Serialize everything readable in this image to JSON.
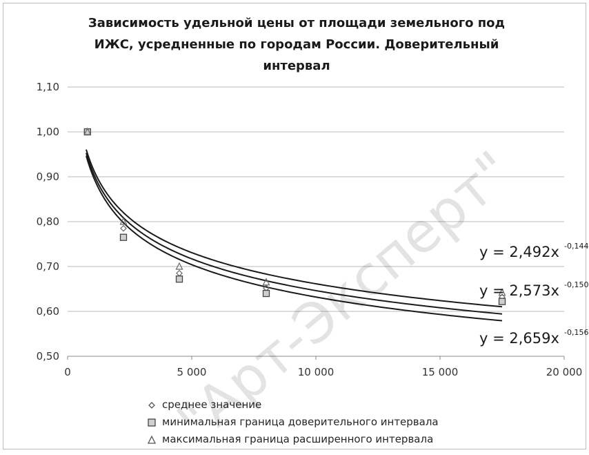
{
  "chart_data": {
    "type": "scatter",
    "title_lines": [
      "Зависимость удельной цены от площади земельного под",
      "ИЖС, усредненные по городам России. Доверительный",
      "интервал"
    ],
    "xlabel": "",
    "ylabel": "",
    "xlim": [
      0,
      20000
    ],
    "ylim": [
      0.5,
      1.1
    ],
    "x_ticks": [
      0,
      5000,
      10000,
      15000,
      20000
    ],
    "x_tick_labels": [
      "0",
      "5 000",
      "10 000",
      "15 000",
      "20 000"
    ],
    "y_ticks": [
      0.5,
      0.6,
      0.7,
      0.8,
      0.9,
      1.0,
      1.1
    ],
    "y_tick_labels": [
      "0,50",
      "0,60",
      "0,70",
      "0,80",
      "0,90",
      "1,00",
      "1,10"
    ],
    "grid": "horizontal",
    "legend_position": "bottom",
    "series": [
      {
        "name": "среднее значение",
        "marker": "diamond",
        "x": [
          800,
          2250,
          4500,
          8000,
          17500
        ],
        "y": [
          1.0,
          0.785,
          0.685,
          0.652,
          0.632
        ]
      },
      {
        "name": "минимальная граница доверительного интервала",
        "marker": "square",
        "x": [
          800,
          2250,
          4500,
          8000,
          17500
        ],
        "y": [
          1.0,
          0.765,
          0.672,
          0.64,
          0.622
        ]
      },
      {
        "name": "максимальная граница расширенного интервала",
        "marker": "triangle",
        "x": [
          800,
          2250,
          4500,
          8000,
          17500
        ],
        "y": [
          1.0,
          0.8,
          0.7,
          0.665,
          0.642
        ]
      }
    ],
    "trendlines": [
      {
        "label": "y = 2,492x",
        "exp_label": "-0,144",
        "a": 2.492,
        "b": -0.144
      },
      {
        "label": "y = 2,573x",
        "exp_label": "-0,150",
        "a": 2.573,
        "b": -0.15
      },
      {
        "label": "y = 2,659x",
        "exp_label": "-0,156",
        "a": 2.659,
        "b": -0.156
      }
    ],
    "trendline_x_range": [
      750,
      17500
    ],
    "colors": {
      "line": "#1a1a1a",
      "grid": "#b8b8b8",
      "marker": "#666666"
    }
  },
  "watermark": "\"Арт-Эксперт\""
}
